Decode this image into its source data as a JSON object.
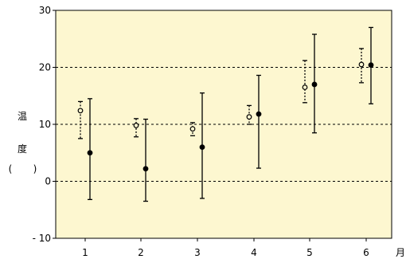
{
  "chart_data": {
    "type": "scatter",
    "title": "",
    "xlabel": "月",
    "ylabel": {
      "line1": "温",
      "line2": "度",
      "paren_left": "(",
      "paren_right": ")"
    },
    "x_ticks": [
      "1",
      "2",
      "3",
      "4",
      "5",
      "6"
    ],
    "y_ticks": [
      "30",
      "20",
      "10",
      "0",
      "- 10"
    ],
    "ylim": [
      -10,
      30
    ],
    "grid": "dashed horizontal at 0, 10, 20",
    "plot_background": "#fdf7d0",
    "series": [
      {
        "style": "open-circle, dotted error bar",
        "points": [
          {
            "x": 1,
            "center": 12.4,
            "low": 7.5,
            "high": 14.0
          },
          {
            "x": 2,
            "center": 9.8,
            "low": 7.8,
            "high": 11.0
          },
          {
            "x": 3,
            "center": 9.2,
            "low": 8.0,
            "high": 10.3
          },
          {
            "x": 4,
            "center": 11.3,
            "low": 10.0,
            "high": 13.3
          },
          {
            "x": 5,
            "center": 16.5,
            "low": 13.8,
            "high": 21.2
          },
          {
            "x": 6,
            "center": 20.5,
            "low": 17.3,
            "high": 23.3
          }
        ]
      },
      {
        "style": "filled-circle, solid error bar",
        "points": [
          {
            "x": 1,
            "center": 5.0,
            "low": -3.2,
            "high": 14.5
          },
          {
            "x": 2,
            "center": 2.2,
            "low": -3.5,
            "high": 10.9
          },
          {
            "x": 3,
            "center": 6.0,
            "low": -3.0,
            "high": 15.5
          },
          {
            "x": 4,
            "center": 11.8,
            "low": 2.3,
            "high": 18.6
          },
          {
            "x": 5,
            "center": 17.0,
            "low": 8.5,
            "high": 25.8
          },
          {
            "x": 6,
            "center": 20.4,
            "low": 13.6,
            "high": 27.0
          }
        ]
      }
    ]
  }
}
